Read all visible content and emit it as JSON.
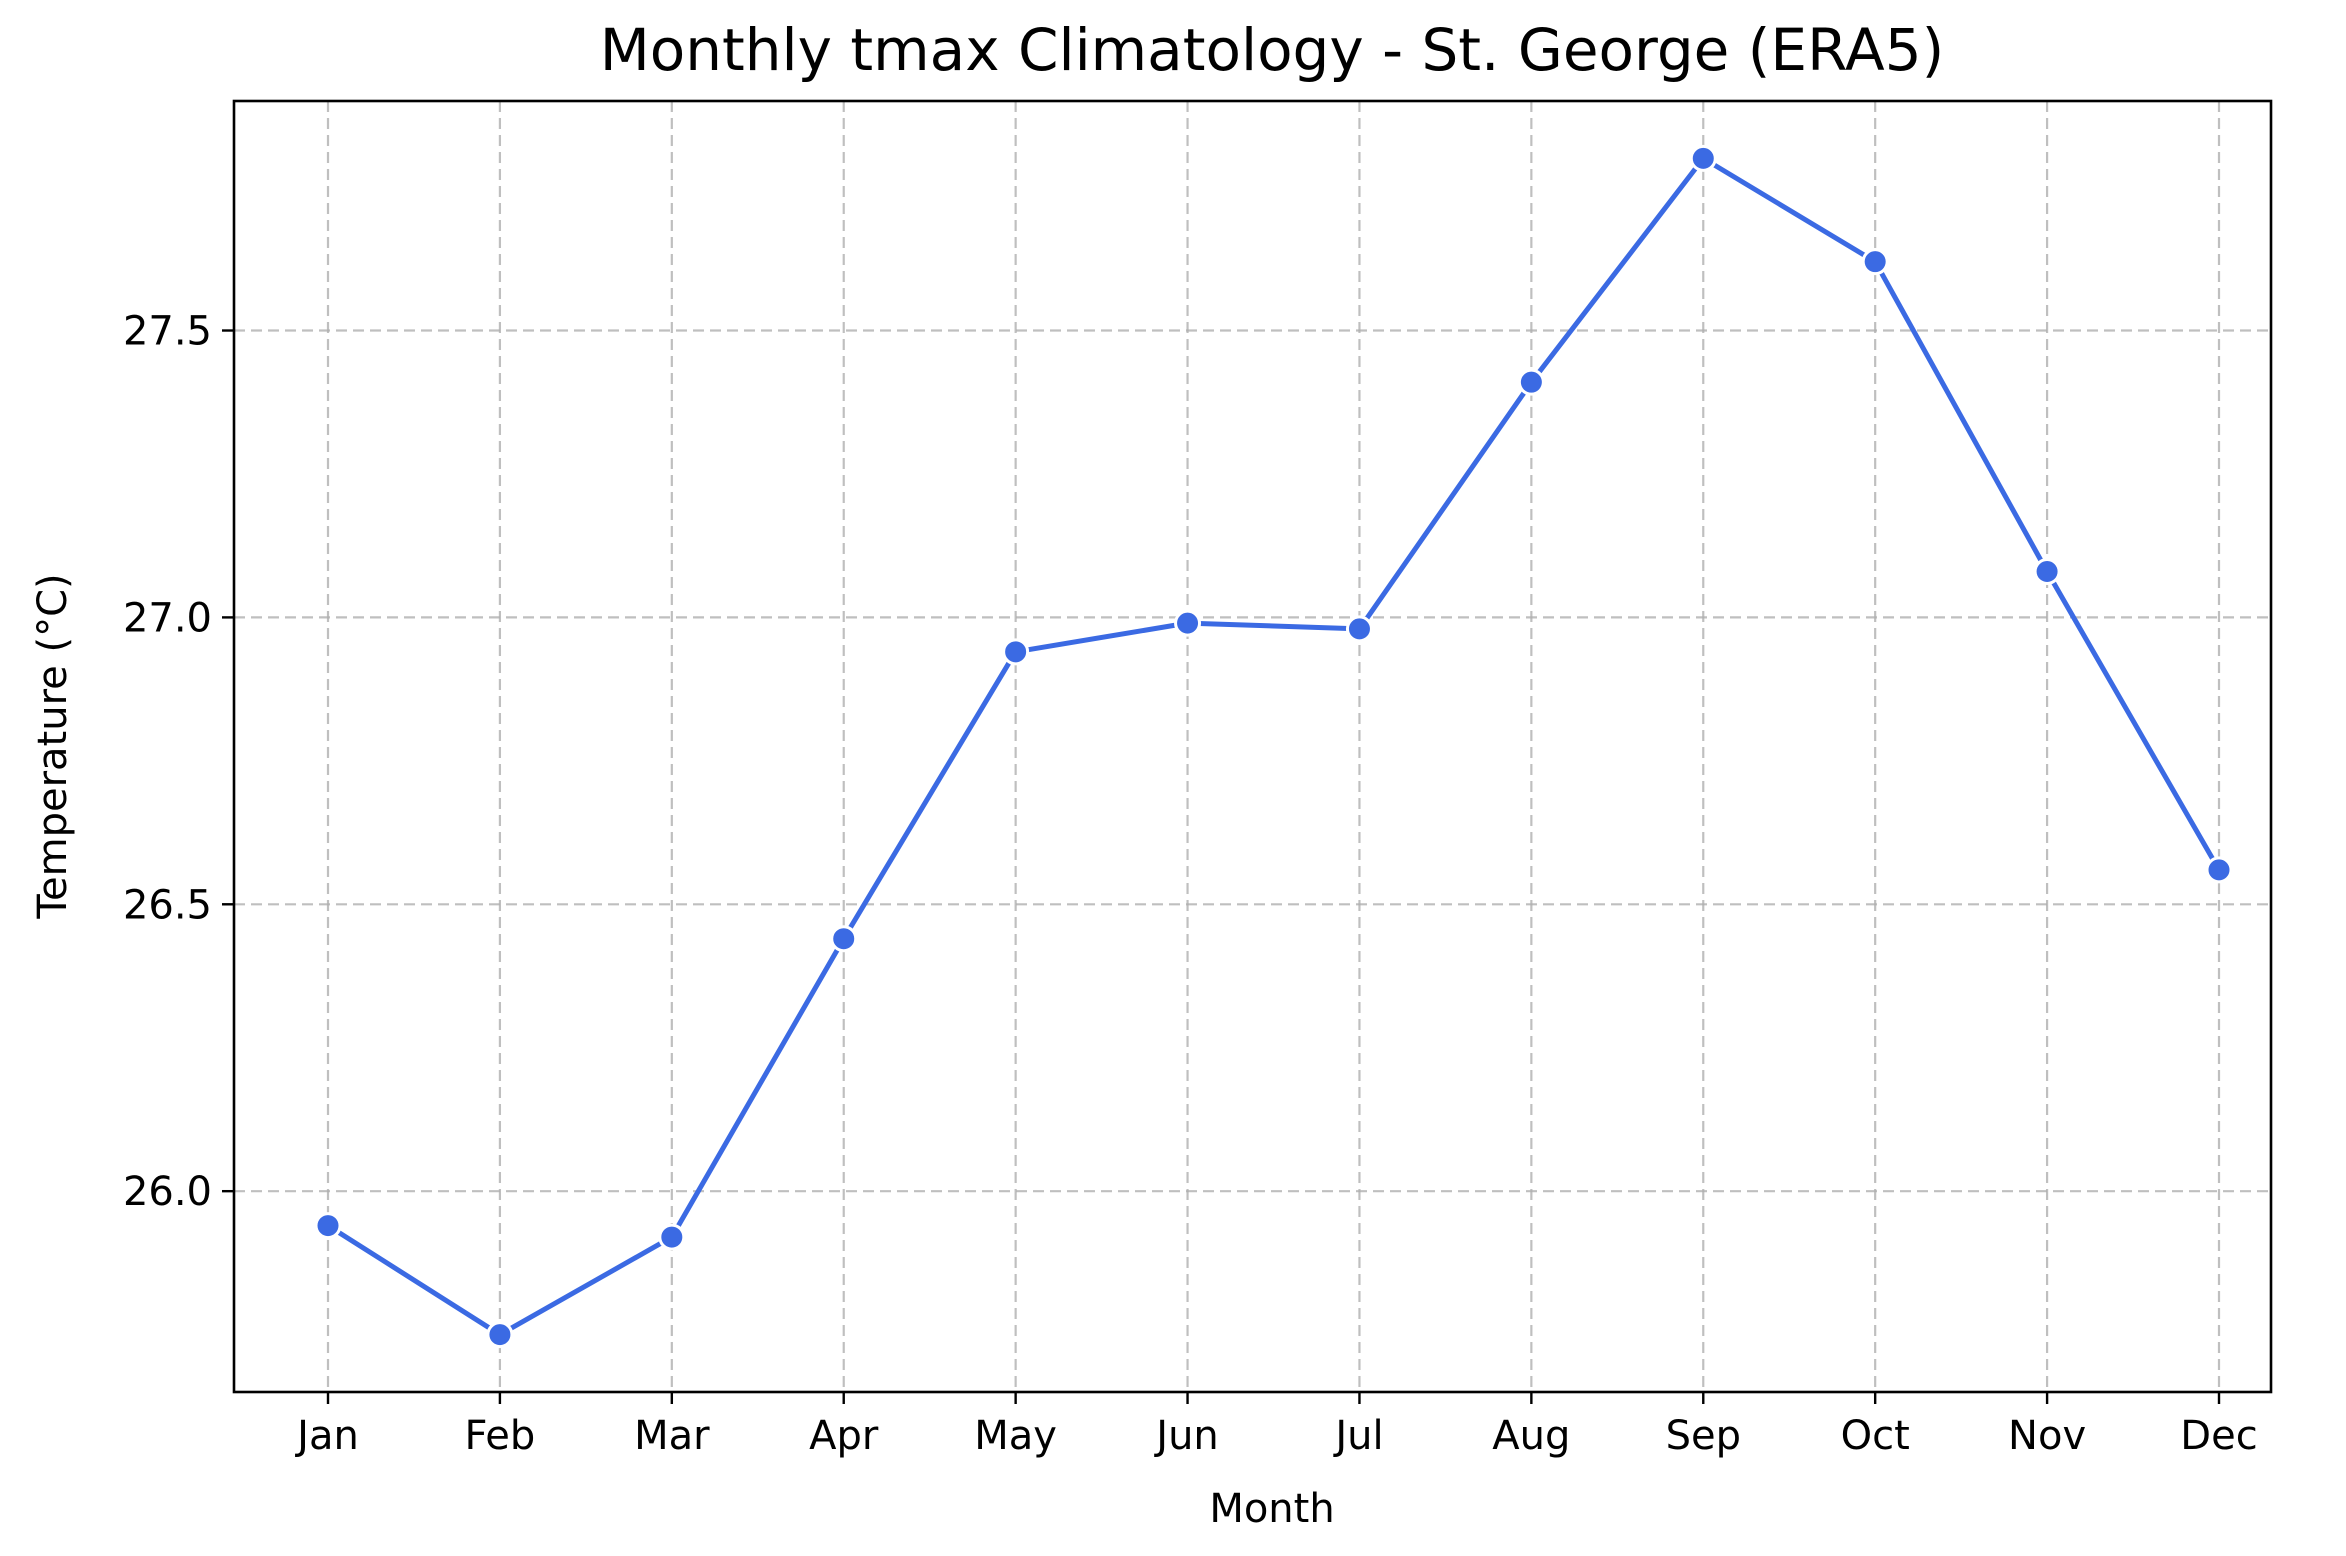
{
  "chart_data": {
    "type": "line",
    "title": "Monthly tmax Climatology - St. George (ERA5)",
    "xlabel": "Month",
    "ylabel": "Temperature (°C)",
    "categories": [
      "Jan",
      "Feb",
      "Mar",
      "Apr",
      "May",
      "Jun",
      "Jul",
      "Aug",
      "Sep",
      "Oct",
      "Nov",
      "Dec"
    ],
    "series": [
      {
        "values": [
          25.94,
          25.75,
          25.92,
          26.44,
          26.94,
          26.99,
          26.98,
          27.41,
          27.8,
          27.62,
          27.08,
          26.56
        ]
      }
    ],
    "yticks": [
      "26.0",
      "26.5",
      "27.0",
      "27.5"
    ],
    "ylim": [
      25.65,
      27.9
    ],
    "grid": true,
    "colors": {
      "series": "#3b6ae3"
    }
  }
}
